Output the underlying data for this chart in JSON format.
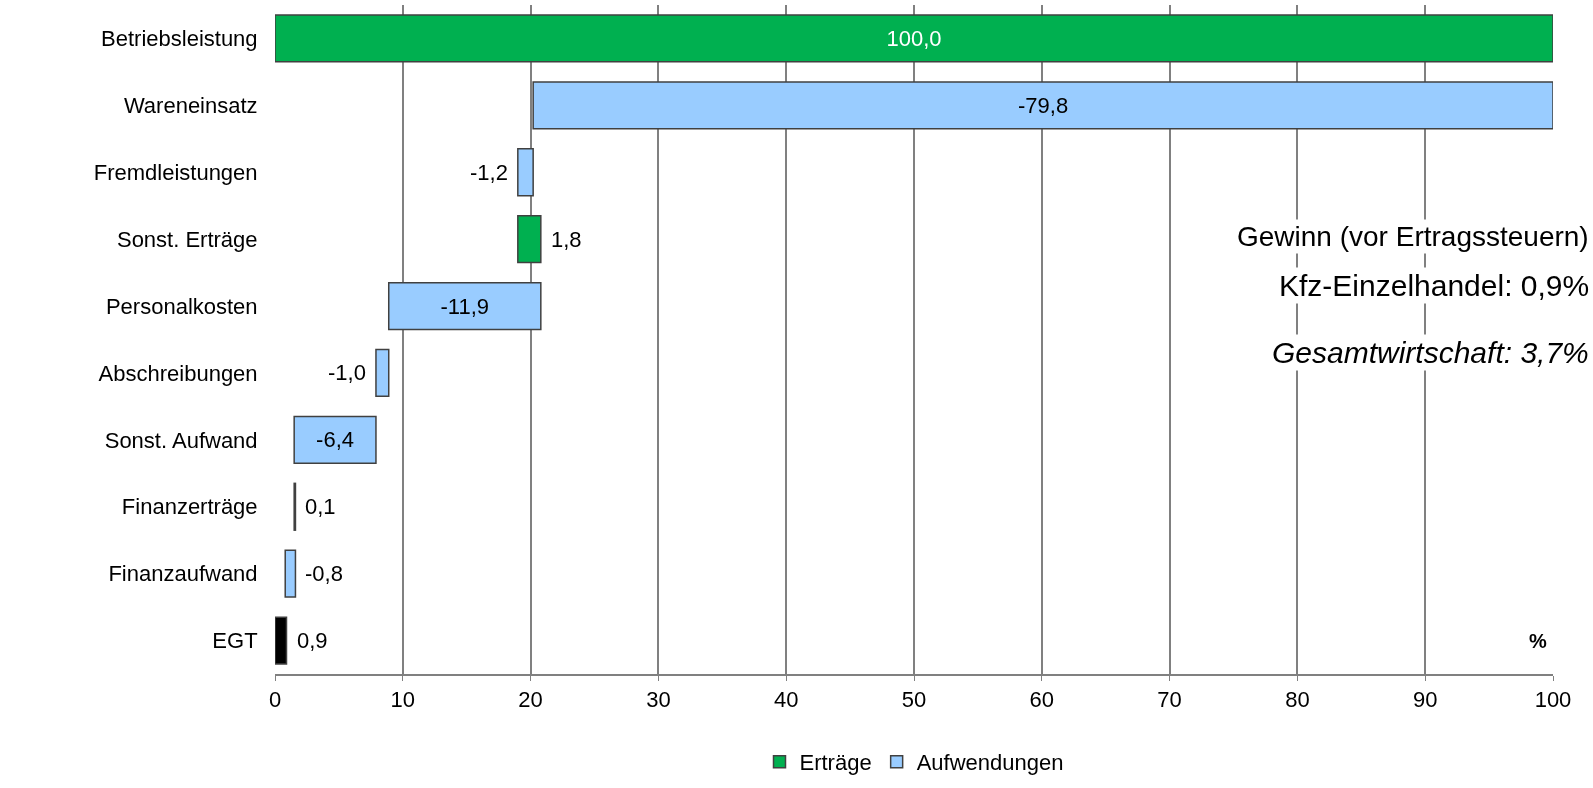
{
  "chart_data": {
    "type": "bar",
    "orientation": "horizontal",
    "xlabel": "%",
    "categories": [
      "Betriebsleistung",
      "Wareneinsatz",
      "Fremdleistungen",
      "Sonst. Erträge",
      "Personalkosten",
      "Abschreibungen",
      "Sonst. Aufwand",
      "Finanzerträge",
      "Finanzaufwand",
      "EGT"
    ],
    "series": [
      {
        "name": "Erträge",
        "color": "#00b050",
        "base": [
          0,
          null,
          null,
          19.0,
          null,
          null,
          null,
          1.5,
          null,
          null
        ],
        "values": [
          100,
          null,
          null,
          1.8,
          null,
          null,
          null,
          0.1,
          null,
          null
        ],
        "value_labels": [
          "100,0",
          null,
          null,
          "1,8",
          null,
          null,
          null,
          "0,1",
          null,
          null
        ]
      },
      {
        "name": "Aufwendungen",
        "color": "#99ccff",
        "base": [
          null,
          100,
          20.2,
          null,
          20.8,
          8.9,
          7.9,
          null,
          1.6,
          null
        ],
        "values": [
          null,
          -79.8,
          -1.2,
          null,
          -11.9,
          -1.0,
          -6.4,
          null,
          -0.8,
          null
        ],
        "value_labels": [
          null,
          "-79,8",
          "-1,2",
          null,
          "-11,9",
          "-1,0",
          "-6,4",
          null,
          "-0,8",
          null
        ]
      },
      {
        "color": "#000000",
        "base": [
          null,
          null,
          null,
          null,
          null,
          null,
          null,
          null,
          null,
          0
        ],
        "values": [
          null,
          null,
          null,
          null,
          null,
          null,
          null,
          null,
          null,
          0.9
        ],
        "value_labels": [
          null,
          null,
          null,
          null,
          null,
          null,
          null,
          null,
          null,
          "0,9"
        ]
      }
    ],
    "xlim": [
      0,
      100
    ],
    "xticks": [
      0,
      10,
      20,
      30,
      40,
      50,
      60,
      70,
      80,
      90,
      100
    ],
    "grid": "x",
    "legend": "bottom",
    "annotations": [
      "Gewinn (vor Ertragssteuern)",
      "Kfz-Einzelhandel: 0,9%",
      "Gesamtwirtschaft: 3,7%"
    ]
  }
}
